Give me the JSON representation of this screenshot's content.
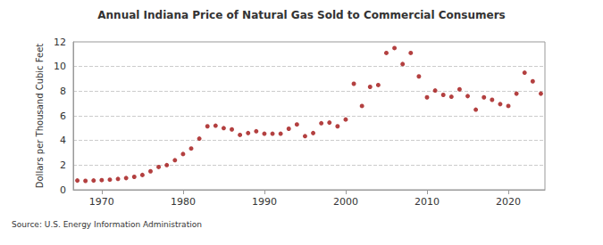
{
  "chart_data": {
    "type": "scatter",
    "title": "Annual Indiana Price of Natural Gas Sold to Commercial Consumers",
    "y_label": "Dollars per Thousand Cubic Feet",
    "annotations": [
      "Source: U.S. Energy Information Administration"
    ],
    "x": [
      1967,
      1968,
      1969,
      1970,
      1971,
      1972,
      1973,
      1974,
      1975,
      1976,
      1977,
      1978,
      1979,
      1980,
      1981,
      1982,
      1983,
      1984,
      1985,
      1986,
      1987,
      1988,
      1989,
      1990,
      1991,
      1992,
      1993,
      1994,
      1995,
      1996,
      1997,
      1998,
      1999,
      2000,
      2001,
      2002,
      2003,
      2004,
      2005,
      2006,
      2007,
      2008,
      2009,
      2010,
      2011,
      2012,
      2013,
      2014,
      2015,
      2016,
      2017,
      2018,
      2019,
      2020,
      2021,
      2022,
      2023,
      2024
    ],
    "values": [
      0.75,
      0.72,
      0.75,
      0.78,
      0.82,
      0.88,
      0.95,
      1.05,
      1.2,
      1.5,
      1.85,
      2.0,
      2.4,
      2.9,
      3.35,
      4.15,
      5.15,
      5.2,
      5.0,
      4.9,
      4.45,
      4.6,
      4.75,
      4.55,
      4.55,
      4.55,
      4.95,
      5.3,
      4.35,
      4.6,
      5.4,
      5.45,
      5.15,
      5.7,
      8.6,
      6.8,
      8.35,
      8.5,
      11.1,
      11.5,
      10.2,
      11.1,
      9.2,
      7.5,
      8.05,
      7.7,
      7.55,
      8.15,
      7.6,
      6.5,
      7.5,
      7.3,
      6.95,
      6.8,
      7.8,
      9.5,
      8.8,
      7.8
    ],
    "color": "#a01010",
    "marker": "circle",
    "xlim": [
      1966.5,
      2024.5
    ],
    "xticks": [
      1970,
      1980,
      1990,
      2000,
      2010,
      2020
    ],
    "ylim": [
      0,
      12
    ],
    "yticks": [
      0,
      2,
      4,
      6,
      8,
      10,
      12
    ],
    "grid": true
  }
}
